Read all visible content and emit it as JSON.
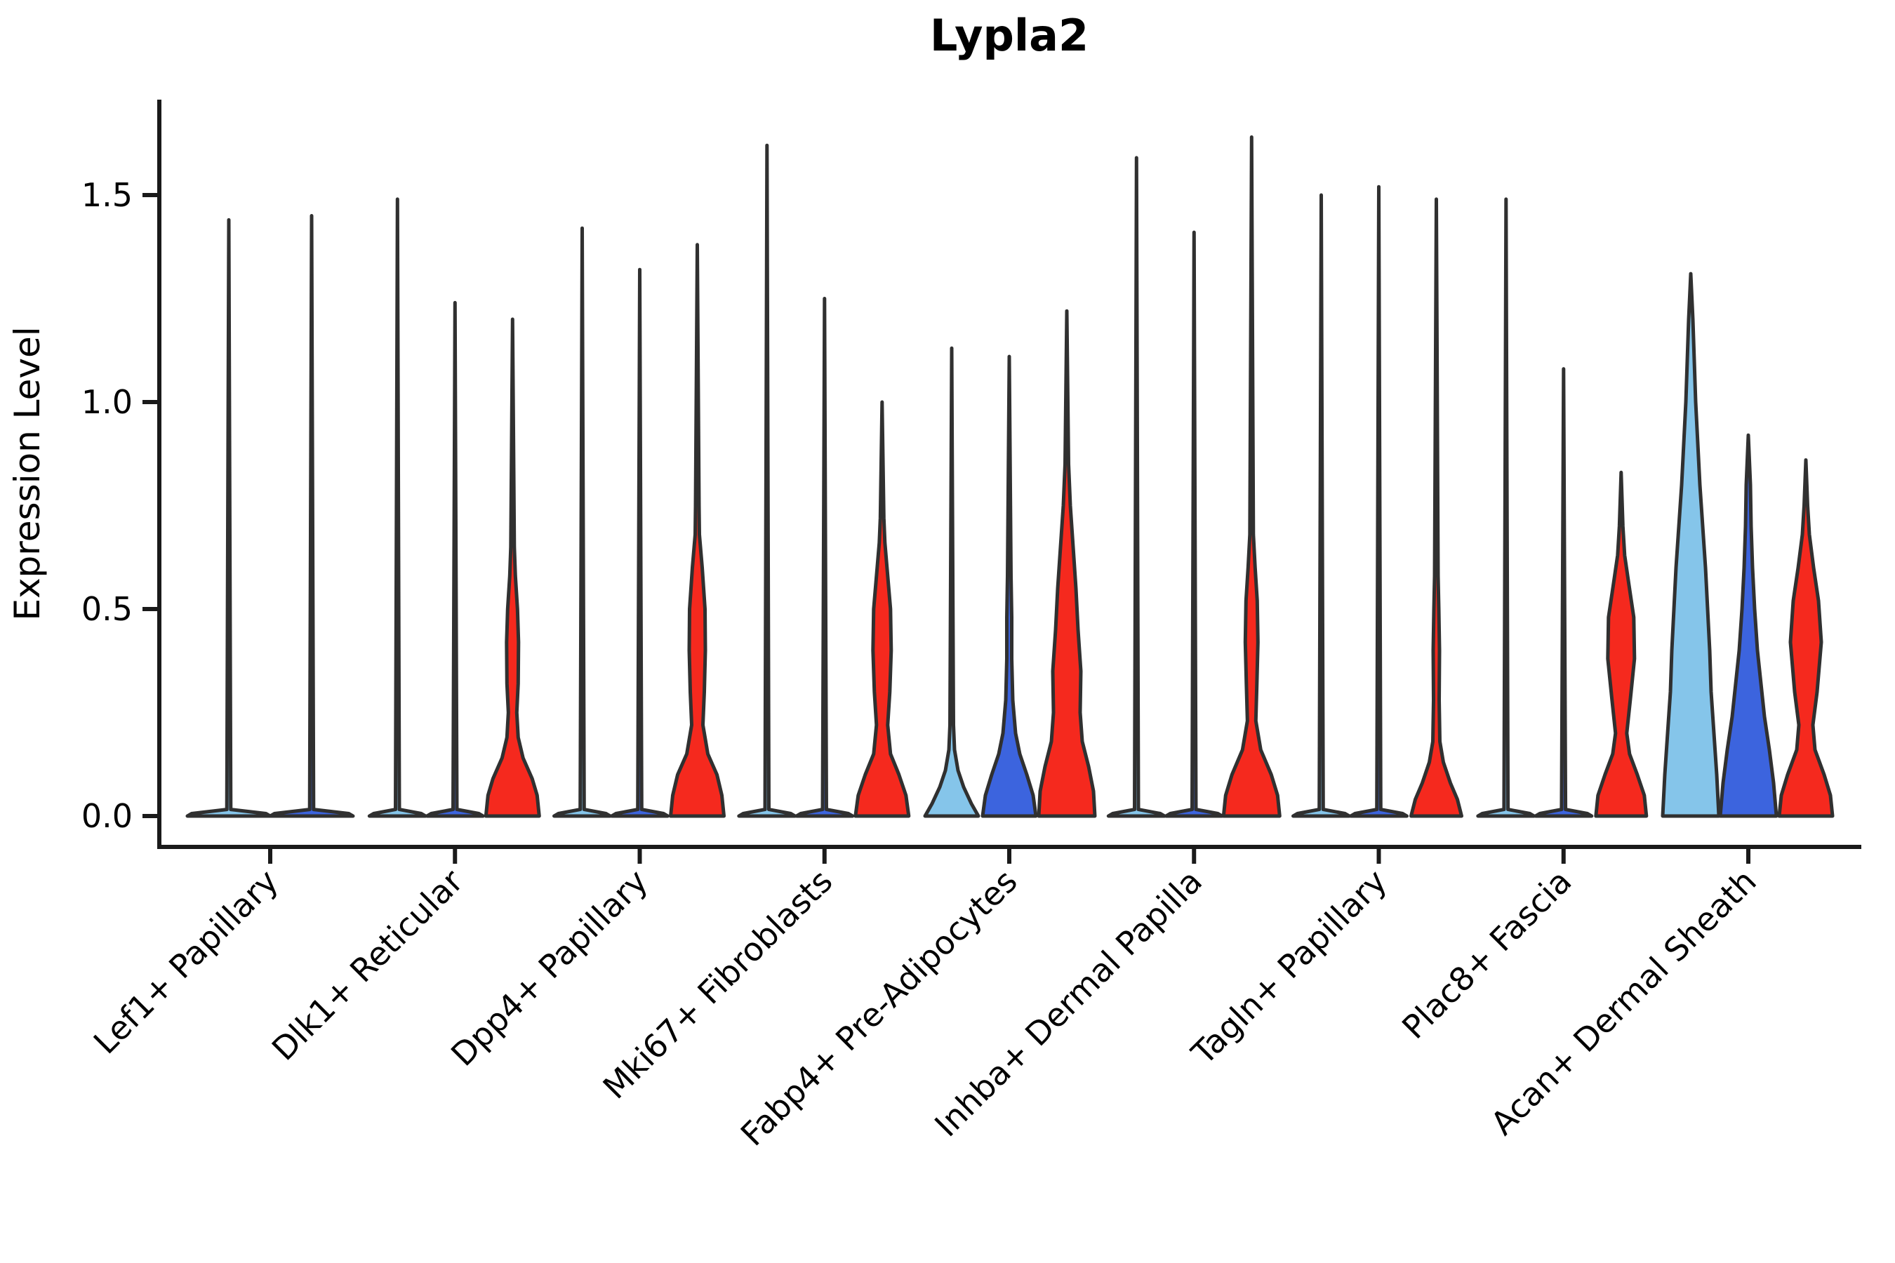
{
  "chart_data": {
    "type": "violin",
    "title": "Lypla2",
    "ylabel": "Expression Level",
    "xlabel": "",
    "yticks": [
      0.0,
      0.5,
      1.0,
      1.5
    ],
    "ylim": [
      -0.075,
      1.73
    ],
    "grid": false,
    "legend": "none",
    "categories": [
      "Lef1+ Papillary",
      "Dlk1+ Reticular",
      "Dpp4+ Papillary",
      "Mki67+ Fibroblasts",
      "Fabp4+ Pre-Adipocytes",
      "Inhba+ Dermal Papilla",
      "Tagln+ Papillary",
      "Plac8+ Fascia",
      "Acan+ Dermal Sheath"
    ],
    "palette": {
      "lightblue": "#85C5EA",
      "blue": "#3C64DE",
      "red": "#F5291E",
      "outline": "#303030",
      "axis": "#1a1a1a"
    },
    "groups": [
      {
        "category": "Lef1+ Papillary",
        "violins": [
          {
            "color": "lightblue",
            "offset": -59,
            "width": 118,
            "max": 1.44,
            "profile": null
          },
          {
            "color": "blue",
            "offset": 59,
            "width": 118,
            "max": 1.45,
            "profile": null
          }
        ]
      },
      {
        "category": "Dlk1+ Reticular",
        "violins": [
          {
            "color": "lightblue",
            "offset": -82,
            "width": 80,
            "max": 1.49,
            "profile": null
          },
          {
            "color": "blue",
            "offset": 0,
            "width": 80,
            "max": 1.24,
            "profile": null
          },
          {
            "color": "red",
            "offset": 82,
            "width": 80,
            "max": 1.2,
            "profile": [
              [
                0,
                38
              ],
              [
                0.05,
                35
              ],
              [
                0.09,
                28
              ],
              [
                0.14,
                15
              ],
              [
                0.19,
                8
              ],
              [
                0.25,
                6
              ],
              [
                0.32,
                8
              ],
              [
                0.42,
                8.5
              ],
              [
                0.5,
                7
              ],
              [
                0.58,
                4
              ],
              [
                0.65,
                2.5
              ],
              [
                1.2,
                0
              ]
            ]
          }
        ]
      },
      {
        "category": "Dpp4+ Papillary",
        "violins": [
          {
            "color": "lightblue",
            "offset": -82,
            "width": 80,
            "max": 1.42,
            "profile": null
          },
          {
            "color": "blue",
            "offset": 0,
            "width": 80,
            "max": 1.32,
            "profile": null
          },
          {
            "color": "red",
            "offset": 82,
            "width": 80,
            "max": 1.38,
            "profile": [
              [
                0,
                38
              ],
              [
                0.05,
                35
              ],
              [
                0.1,
                28
              ],
              [
                0.15,
                15
              ],
              [
                0.22,
                8
              ],
              [
                0.3,
                10
              ],
              [
                0.4,
                11.5
              ],
              [
                0.5,
                11
              ],
              [
                0.6,
                7
              ],
              [
                0.68,
                3
              ],
              [
                0.75,
                2.5
              ],
              [
                1.38,
                0
              ]
            ]
          }
        ]
      },
      {
        "category": "Mki67+ Fibroblasts",
        "violins": [
          {
            "color": "lightblue",
            "offset": -82,
            "width": 80,
            "max": 1.62,
            "profile": null
          },
          {
            "color": "blue",
            "offset": 0,
            "width": 80,
            "max": 1.25,
            "profile": null
          },
          {
            "color": "red",
            "offset": 82,
            "width": 80,
            "max": 1.0,
            "profile": [
              [
                0,
                38
              ],
              [
                0.05,
                34
              ],
              [
                0.1,
                24
              ],
              [
                0.15,
                12
              ],
              [
                0.22,
                8
              ],
              [
                0.3,
                11
              ],
              [
                0.4,
                13
              ],
              [
                0.5,
                12
              ],
              [
                0.58,
                8
              ],
              [
                0.66,
                4
              ],
              [
                0.72,
                2.5
              ],
              [
                1.0,
                0
              ]
            ]
          }
        ]
      },
      {
        "category": "Fabp4+ Pre-Adipocytes",
        "violins": [
          {
            "color": "lightblue",
            "offset": -82,
            "width": 80,
            "max": 1.13,
            "profile": [
              [
                0,
                38
              ],
              [
                0.03,
                28
              ],
              [
                0.07,
                17
              ],
              [
                0.11,
                9
              ],
              [
                0.16,
                4
              ],
              [
                0.22,
                2.5
              ],
              [
                1.13,
                0
              ]
            ]
          },
          {
            "color": "blue",
            "offset": 0,
            "width": 80,
            "max": 1.11,
            "profile": [
              [
                0,
                38
              ],
              [
                0.05,
                34
              ],
              [
                0.1,
                25
              ],
              [
                0.15,
                15
              ],
              [
                0.2,
                9
              ],
              [
                0.28,
                5
              ],
              [
                0.38,
                3.5
              ],
              [
                0.48,
                3.5
              ],
              [
                0.58,
                2.5
              ],
              [
                1.11,
                0
              ]
            ]
          },
          {
            "color": "red",
            "offset": 82,
            "width": 80,
            "max": 1.22,
            "profile": [
              [
                0,
                40
              ],
              [
                0.06,
                38
              ],
              [
                0.12,
                31
              ],
              [
                0.18,
                22
              ],
              [
                0.25,
                19
              ],
              [
                0.35,
                20
              ],
              [
                0.45,
                16
              ],
              [
                0.55,
                13
              ],
              [
                0.65,
                9
              ],
              [
                0.75,
                5
              ],
              [
                0.85,
                2.5
              ],
              [
                1.22,
                0
              ]
            ]
          }
        ]
      },
      {
        "category": "Inhba+ Dermal Papilla",
        "violins": [
          {
            "color": "lightblue",
            "offset": -82,
            "width": 80,
            "max": 1.59,
            "profile": null
          },
          {
            "color": "blue",
            "offset": 0,
            "width": 80,
            "max": 1.41,
            "profile": null
          },
          {
            "color": "red",
            "offset": 82,
            "width": 80,
            "max": 1.64,
            "profile": [
              [
                0,
                40
              ],
              [
                0.05,
                37
              ],
              [
                0.1,
                28
              ],
              [
                0.16,
                13
              ],
              [
                0.23,
                6
              ],
              [
                0.32,
                7.5
              ],
              [
                0.42,
                9
              ],
              [
                0.52,
                8
              ],
              [
                0.6,
                5
              ],
              [
                0.68,
                2.5
              ],
              [
                1.64,
                0
              ]
            ]
          }
        ]
      },
      {
        "category": "Tagln+ Papillary",
        "violins": [
          {
            "color": "lightblue",
            "offset": -82,
            "width": 80,
            "max": 1.5,
            "profile": null
          },
          {
            "color": "blue",
            "offset": 0,
            "width": 80,
            "max": 1.52,
            "profile": null
          },
          {
            "color": "red",
            "offset": 82,
            "width": 80,
            "max": 1.49,
            "profile": [
              [
                0,
                36
              ],
              [
                0.04,
                30
              ],
              [
                0.08,
                20
              ],
              [
                0.13,
                10
              ],
              [
                0.18,
                5
              ],
              [
                0.28,
                4
              ],
              [
                0.4,
                4.5
              ],
              [
                0.5,
                3.5
              ],
              [
                0.58,
                2.5
              ],
              [
                1.49,
                0
              ]
            ]
          }
        ]
      },
      {
        "category": "Plac8+ Fascia",
        "violins": [
          {
            "color": "lightblue",
            "offset": -82,
            "width": 80,
            "max": 1.49,
            "profile": null
          },
          {
            "color": "blue",
            "offset": 0,
            "width": 80,
            "max": 1.08,
            "profile": null
          },
          {
            "color": "red",
            "offset": 82,
            "width": 80,
            "max": 0.83,
            "profile": [
              [
                0,
                36
              ],
              [
                0.05,
                33
              ],
              [
                0.1,
                23
              ],
              [
                0.15,
                12
              ],
              [
                0.2,
                8
              ],
              [
                0.28,
                13
              ],
              [
                0.38,
                19
              ],
              [
                0.48,
                18
              ],
              [
                0.56,
                11
              ],
              [
                0.63,
                5
              ],
              [
                0.7,
                2.5
              ],
              [
                0.83,
                0
              ]
            ]
          }
        ]
      },
      {
        "category": "Acan+ Dermal Sheath",
        "violins": [
          {
            "color": "lightblue",
            "offset": -82,
            "width": 80,
            "max": 1.31,
            "profile": [
              [
                0,
                40
              ],
              [
                0.1,
                37
              ],
              [
                0.2,
                33
              ],
              [
                0.3,
                29
              ],
              [
                0.4,
                27
              ],
              [
                0.5,
                24
              ],
              [
                0.6,
                21
              ],
              [
                0.7,
                17
              ],
              [
                0.8,
                13
              ],
              [
                0.9,
                10
              ],
              [
                1.0,
                7
              ],
              [
                1.1,
                5
              ],
              [
                1.2,
                3
              ],
              [
                1.31,
                0
              ]
            ]
          },
          {
            "color": "blue",
            "offset": 0,
            "width": 80,
            "max": 0.92,
            "profile": [
              [
                0,
                40
              ],
              [
                0.08,
                36
              ],
              [
                0.16,
                30
              ],
              [
                0.24,
                23
              ],
              [
                0.32,
                18
              ],
              [
                0.4,
                13
              ],
              [
                0.5,
                9
              ],
              [
                0.6,
                6
              ],
              [
                0.7,
                4
              ],
              [
                0.8,
                3
              ],
              [
                0.92,
                0
              ]
            ]
          },
          {
            "color": "red",
            "offset": 82,
            "width": 80,
            "max": 0.86,
            "profile": [
              [
                0,
                38
              ],
              [
                0.05,
                35
              ],
              [
                0.1,
                26
              ],
              [
                0.16,
                13
              ],
              [
                0.22,
                10
              ],
              [
                0.3,
                16
              ],
              [
                0.42,
                22
              ],
              [
                0.52,
                18
              ],
              [
                0.6,
                11
              ],
              [
                0.68,
                5
              ],
              [
                0.75,
                2.5
              ],
              [
                0.86,
                0
              ]
            ]
          }
        ]
      }
    ]
  }
}
